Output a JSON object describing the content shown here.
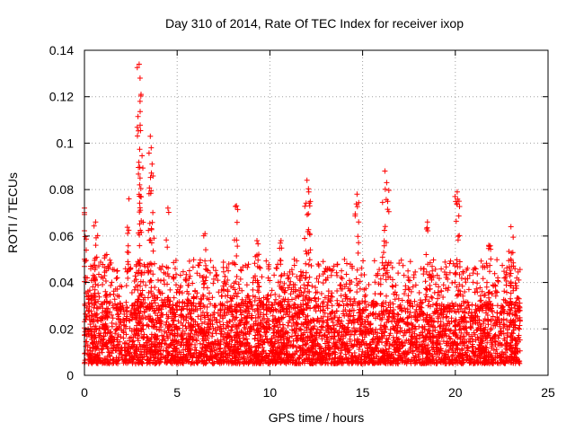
{
  "chart_data": {
    "type": "scatter",
    "title": "Day 310 of 2014, Rate Of TEC Index for receiver ixop",
    "xlabel": "GPS time / hours",
    "ylabel": "ROTI / TECUs",
    "xlim": [
      0,
      25
    ],
    "ylim": [
      0,
      0.14
    ],
    "x_ticks": [
      0,
      5,
      10,
      15,
      20,
      25
    ],
    "x_tick_labels": [
      "0",
      "5",
      "10",
      "15",
      "20",
      "25"
    ],
    "y_ticks": [
      0,
      0.02,
      0.04,
      0.06,
      0.08,
      0.1,
      0.12,
      0.14
    ],
    "y_tick_labels": [
      "0",
      "0.02",
      "0.04",
      "0.06",
      "0.08",
      "0.1",
      "0.12",
      "0.14"
    ],
    "grid": true,
    "marker": "+",
    "series_color": "#ff0000",
    "series": [
      {
        "name": "ROTI",
        "x_range": [
          0,
          23.5
        ],
        "baseline_range": [
          0.005,
          0.03
        ],
        "burst_range": [
          0.03,
          0.05
        ],
        "peaks": [
          {
            "x": 0.0,
            "y": 0.072
          },
          {
            "x": 0.6,
            "y": 0.066
          },
          {
            "x": 1.2,
            "y": 0.052
          },
          {
            "x": 2.4,
            "y": 0.076
          },
          {
            "x": 2.95,
            "y": 0.134
          },
          {
            "x": 3.0,
            "y": 0.128
          },
          {
            "x": 3.05,
            "y": 0.121
          },
          {
            "x": 3.0,
            "y": 0.118
          },
          {
            "x": 3.55,
            "y": 0.103
          },
          {
            "x": 3.6,
            "y": 0.098
          },
          {
            "x": 3.65,
            "y": 0.091
          },
          {
            "x": 3.0,
            "y": 0.085
          },
          {
            "x": 4.5,
            "y": 0.072
          },
          {
            "x": 6.5,
            "y": 0.061
          },
          {
            "x": 8.2,
            "y": 0.073
          },
          {
            "x": 9.3,
            "y": 0.058
          },
          {
            "x": 10.6,
            "y": 0.058
          },
          {
            "x": 12.0,
            "y": 0.084
          },
          {
            "x": 12.1,
            "y": 0.079
          },
          {
            "x": 12.15,
            "y": 0.073
          },
          {
            "x": 14.7,
            "y": 0.078
          },
          {
            "x": 16.2,
            "y": 0.088
          },
          {
            "x": 16.3,
            "y": 0.083
          },
          {
            "x": 18.5,
            "y": 0.066
          },
          {
            "x": 20.1,
            "y": 0.079
          },
          {
            "x": 20.2,
            "y": 0.075
          },
          {
            "x": 21.8,
            "y": 0.056
          },
          {
            "x": 23.0,
            "y": 0.064
          }
        ]
      }
    ]
  }
}
